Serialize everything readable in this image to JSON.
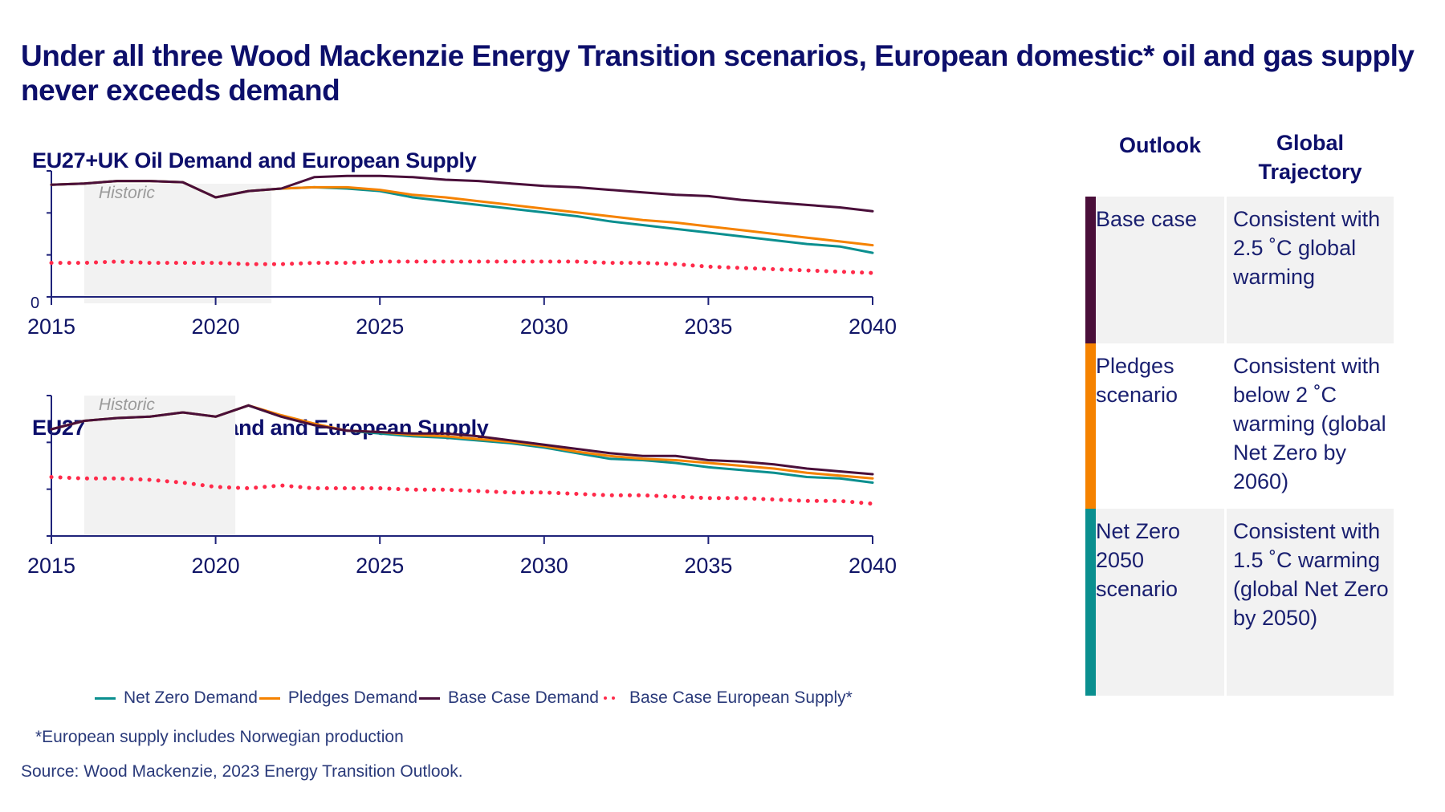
{
  "title": "Under all three Wood Mackenzie Energy Transition scenarios, European domestic* oil and gas supply never exceeds demand",
  "colors": {
    "net_zero": "#0a8f8f",
    "pledges": "#f58200",
    "base_case": "#4a0f3a",
    "supply": "#ff2a4a",
    "axis": "#1f237a",
    "historic_band": "#f2f2f2"
  },
  "legend": [
    {
      "label": "Net Zero Demand",
      "series": "net_zero",
      "style": "line"
    },
    {
      "label": "Pledges Demand",
      "series": "pledges",
      "style": "line"
    },
    {
      "label": "Base Case Demand",
      "series": "base_case",
      "style": "line"
    },
    {
      "label": "Base Case European Supply*",
      "series": "supply",
      "style": "dotted"
    }
  ],
  "footnote": "*European supply includes Norwegian production",
  "source": "Source: Wood Mackenzie, 2023 Energy Transition Outlook.",
  "table": {
    "headers": {
      "outlook": "Outlook",
      "trajectory": "Global Trajectory"
    },
    "rows": [
      {
        "outlook": "Base case",
        "trajectory": "Consistent with 2.5 ˚C global warming",
        "color": "#4a0f3a",
        "shaded": true
      },
      {
        "outlook": "Pledges scenario",
        "trajectory": "Consistent with below 2 ˚C warming (global Net Zero by 2060)",
        "color": "#f58200",
        "shaded": false
      },
      {
        "outlook": "Net Zero 2050 scenario",
        "trajectory": "Consistent with 1.5 ˚C warming (global Net Zero by 2050)",
        "color": "#0a8f8f",
        "shaded": true
      }
    ]
  },
  "chart_data": [
    {
      "type": "line",
      "title": "EU27+UK Oil Demand and European Supply",
      "xlabel": "",
      "ylabel": "",
      "units_note": "relative index (y-axis unlabeled except 0)",
      "xlim": [
        2015,
        2040
      ],
      "ylim": [
        0,
        100
      ],
      "x_ticks": [
        2015,
        2020,
        2025,
        2030,
        2035,
        2040
      ],
      "y_tick_labels": [
        "0"
      ],
      "y_tick_count": 4,
      "historic_band": {
        "label": "Historic",
        "from": 2016,
        "to": 2021.7
      },
      "x": [
        2015,
        2016,
        2017,
        2018,
        2019,
        2020,
        2021,
        2022,
        2023,
        2024,
        2025,
        2026,
        2027,
        2028,
        2029,
        2030,
        2031,
        2032,
        2033,
        2034,
        2035,
        2036,
        2037,
        2038,
        2039,
        2040
      ],
      "series": [
        {
          "name": "Base Case Demand",
          "key": "base_case",
          "values": [
            89,
            90,
            92,
            92,
            91,
            79,
            84,
            86,
            95,
            96,
            96,
            95,
            93,
            92,
            90,
            88,
            87,
            85,
            83,
            81,
            80,
            77,
            75,
            73,
            71,
            68
          ]
        },
        {
          "name": "Pledges Demand",
          "key": "pledges",
          "values": [
            89,
            90,
            92,
            92,
            91,
            79,
            84,
            86,
            87,
            87,
            85,
            81,
            79,
            76,
            73,
            70,
            67,
            64,
            61,
            59,
            56,
            53,
            50,
            47,
            44,
            41
          ]
        },
        {
          "name": "Net Zero Demand",
          "key": "net_zero",
          "values": [
            89,
            90,
            92,
            92,
            91,
            79,
            84,
            86,
            87,
            86,
            84,
            79,
            76,
            73,
            70,
            67,
            64,
            60,
            57,
            54,
            51,
            48,
            45,
            42,
            40,
            35
          ]
        },
        {
          "name": "Base Case European Supply*",
          "key": "supply",
          "values": [
            27,
            27,
            28,
            27,
            27,
            27,
            26,
            26,
            27,
            27,
            28,
            28,
            28,
            28,
            28,
            28,
            28,
            27,
            27,
            26,
            24,
            23,
            22,
            21,
            20,
            19
          ]
        }
      ]
    },
    {
      "type": "line",
      "title": "EU27+UK Gas Demand and European Supply",
      "xlabel": "",
      "ylabel": "",
      "units_note": "relative index (y-axis unlabeled)",
      "xlim": [
        2015,
        2040
      ],
      "ylim": [
        0,
        100
      ],
      "x_ticks": [
        2015,
        2020,
        2025,
        2030,
        2035,
        2040
      ],
      "y_tick_labels": [],
      "y_tick_count": 4,
      "historic_band": {
        "label": "Historic",
        "from": 2016,
        "to": 2020.6
      },
      "x": [
        2015,
        2016,
        2017,
        2018,
        2019,
        2020,
        2021,
        2022,
        2023,
        2024,
        2025,
        2026,
        2027,
        2028,
        2029,
        2030,
        2031,
        2032,
        2033,
        2034,
        2035,
        2036,
        2037,
        2038,
        2039,
        2040
      ],
      "series": [
        {
          "name": "Base Case Demand",
          "key": "base_case",
          "values": [
            76,
            82,
            84,
            85,
            88,
            85,
            93,
            85,
            79,
            75,
            74,
            73,
            73,
            71,
            68,
            65,
            62,
            59,
            57,
            57,
            54,
            53,
            51,
            48,
            46,
            44
          ]
        },
        {
          "name": "Pledges Demand",
          "key": "pledges",
          "values": [
            76,
            82,
            84,
            85,
            88,
            85,
            93,
            86,
            80,
            75,
            74,
            72,
            71,
            69,
            67,
            64,
            60,
            57,
            55,
            54,
            52,
            50,
            48,
            45,
            43,
            41
          ]
        },
        {
          "name": "Net Zero Demand",
          "key": "net_zero",
          "values": [
            76,
            82,
            84,
            85,
            88,
            85,
            93,
            85,
            79,
            75,
            73,
            71,
            70,
            68,
            66,
            63,
            59,
            55,
            54,
            52,
            49,
            47,
            45,
            42,
            41,
            38
          ]
        },
        {
          "name": "Base Case European Supply*",
          "key": "supply",
          "values": [
            42,
            41,
            41,
            40,
            38,
            35,
            34,
            36,
            34,
            34,
            34,
            33,
            33,
            32,
            31,
            31,
            30,
            29,
            29,
            28,
            27,
            27,
            26,
            25,
            25,
            23
          ]
        }
      ]
    }
  ]
}
